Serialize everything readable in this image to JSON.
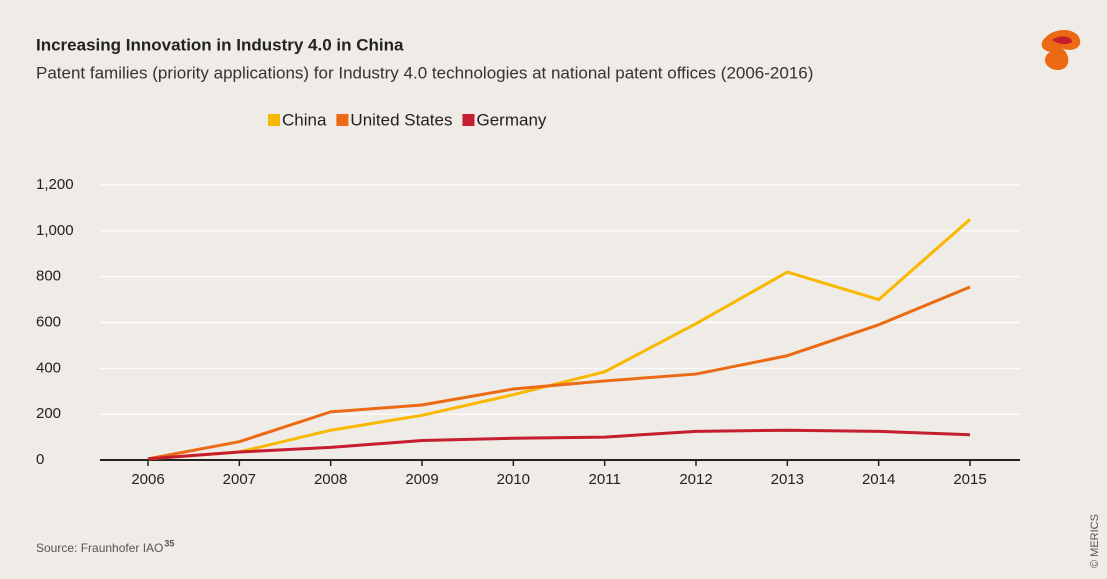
{
  "chart_data": {
    "type": "line",
    "title": "Increasing Innovation in Industry 4.0 in China",
    "subtitle": "Patent families (priority applications) for Industry 4.0 technologies at national patent offices (2006-2016)",
    "categories": [
      "2006",
      "2007",
      "2008",
      "2009",
      "2010",
      "2011",
      "2012",
      "2013",
      "2014",
      "2015"
    ],
    "series": [
      {
        "name": "China",
        "color": "#f9b800",
        "values": [
          5,
          35,
          130,
          195,
          285,
          385,
          595,
          820,
          700,
          1050
        ]
      },
      {
        "name": "United States",
        "color": "#ec6a13",
        "values": [
          5,
          80,
          210,
          240,
          310,
          345,
          375,
          455,
          590,
          755
        ]
      },
      {
        "name": "Germany",
        "color": "#c41e2f",
        "values": [
          5,
          35,
          55,
          85,
          95,
          100,
          125,
          130,
          125,
          110
        ]
      }
    ],
    "ylim": [
      0,
      1200
    ],
    "yticks": [
      0,
      200,
      400,
      600,
      800,
      {
        "value": 1000,
        "label": "1,000"
      },
      {
        "value": 1200,
        "label": "1,200"
      }
    ],
    "grid": true,
    "legend": "top",
    "source": "Source: Fraunhofer IAO",
    "source_note": "35",
    "credit": "© MERICS"
  }
}
